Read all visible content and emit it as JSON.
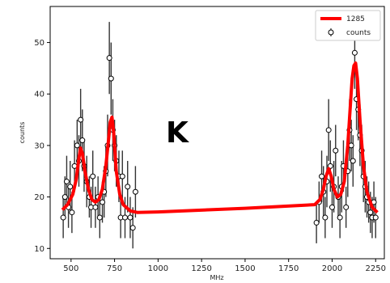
{
  "chart_data": {
    "type": "scatter",
    "panel_label": "K",
    "xlabel": "MHz",
    "ylabel": "counts",
    "xlim": [
      380,
      2300
    ],
    "ylim": [
      8,
      57
    ],
    "x_ticks": [
      500,
      750,
      1000,
      1250,
      1500,
      1750,
      2000,
      2250
    ],
    "y_ticks": [
      10,
      20,
      30,
      40,
      50
    ],
    "grid": false,
    "legend_position": "top-right",
    "colors": {
      "fit": "#ff0000",
      "points": "#000000",
      "errorbars": "#333333"
    },
    "series": [
      {
        "name": "1285",
        "type": "line",
        "x": [
          450,
          480,
          510,
          530,
          545,
          555,
          565,
          580,
          600,
          620,
          640,
          660,
          680,
          700,
          715,
          725,
          735,
          745,
          760,
          780,
          800,
          840,
          880,
          1000,
          1500,
          1900,
          1930,
          1950,
          1965,
          1980,
          1995,
          2010,
          2030,
          2050,
          2070,
          2090,
          2105,
          2115,
          2125,
          2135,
          2145,
          2160,
          2180,
          2200,
          2230,
          2260
        ],
        "y": [
          17.5,
          18.5,
          20.5,
          23.5,
          27.5,
          29.5,
          28.5,
          25,
          21.5,
          19.5,
          19,
          19.5,
          21.5,
          26,
          31,
          34.5,
          35.5,
          32.5,
          25,
          20.5,
          18.5,
          17.3,
          17,
          17.1,
          17.8,
          18.5,
          19.5,
          21.5,
          24,
          25.5,
          24,
          21.5,
          20,
          20.5,
          23,
          30,
          38,
          43,
          45.5,
          46,
          43,
          35,
          26,
          21,
          18,
          17
        ]
      },
      {
        "name": "counts",
        "type": "errorbar",
        "x": [
          455,
          465,
          475,
          485,
          495,
          505,
          520,
          535,
          545,
          555,
          565,
          575,
          590,
          605,
          615,
          625,
          640,
          655,
          665,
          680,
          690,
          700,
          710,
          720,
          730,
          740,
          750,
          760,
          775,
          785,
          795,
          810,
          825,
          840,
          855,
          870,
          1910,
          1925,
          1940,
          1950,
          1960,
          1970,
          1980,
          1990,
          2000,
          2010,
          2020,
          2035,
          2045,
          2055,
          2065,
          2080,
          2090,
          2100,
          2110,
          2120,
          2130,
          2140,
          2150,
          2160,
          2170,
          2180,
          2190,
          2200,
          2210,
          2220,
          2230,
          2240,
          2250
        ],
        "y": [
          16,
          20,
          23,
          18,
          22,
          17,
          26,
          30,
          27,
          35,
          31,
          26,
          23,
          20,
          18,
          24,
          18,
          20,
          16,
          19,
          21,
          25,
          30,
          47,
          43,
          33,
          30,
          27,
          24,
          16,
          24,
          16,
          22,
          16,
          14,
          21,
          15,
          19,
          24,
          21,
          16,
          23,
          33,
          26,
          18,
          22,
          29,
          20,
          16,
          22,
          26,
          18,
          25,
          33,
          30,
          27,
          48,
          39,
          37,
          32,
          29,
          24,
          22,
          20,
          19,
          17,
          16,
          19,
          16
        ],
        "yerr": [
          4,
          4,
          5,
          4,
          5,
          4,
          5,
          5,
          5,
          6,
          6,
          5,
          5,
          4,
          4,
          5,
          4,
          4,
          4,
          4,
          5,
          5,
          6,
          7,
          7,
          6,
          5,
          5,
          5,
          4,
          5,
          4,
          5,
          4,
          4,
          5,
          4,
          4,
          5,
          5,
          4,
          5,
          6,
          5,
          4,
          5,
          5,
          4,
          4,
          5,
          5,
          4,
          5,
          6,
          5,
          5,
          7,
          6,
          6,
          6,
          5,
          5,
          5,
          4,
          4,
          4,
          4,
          4,
          4
        ]
      }
    ]
  }
}
